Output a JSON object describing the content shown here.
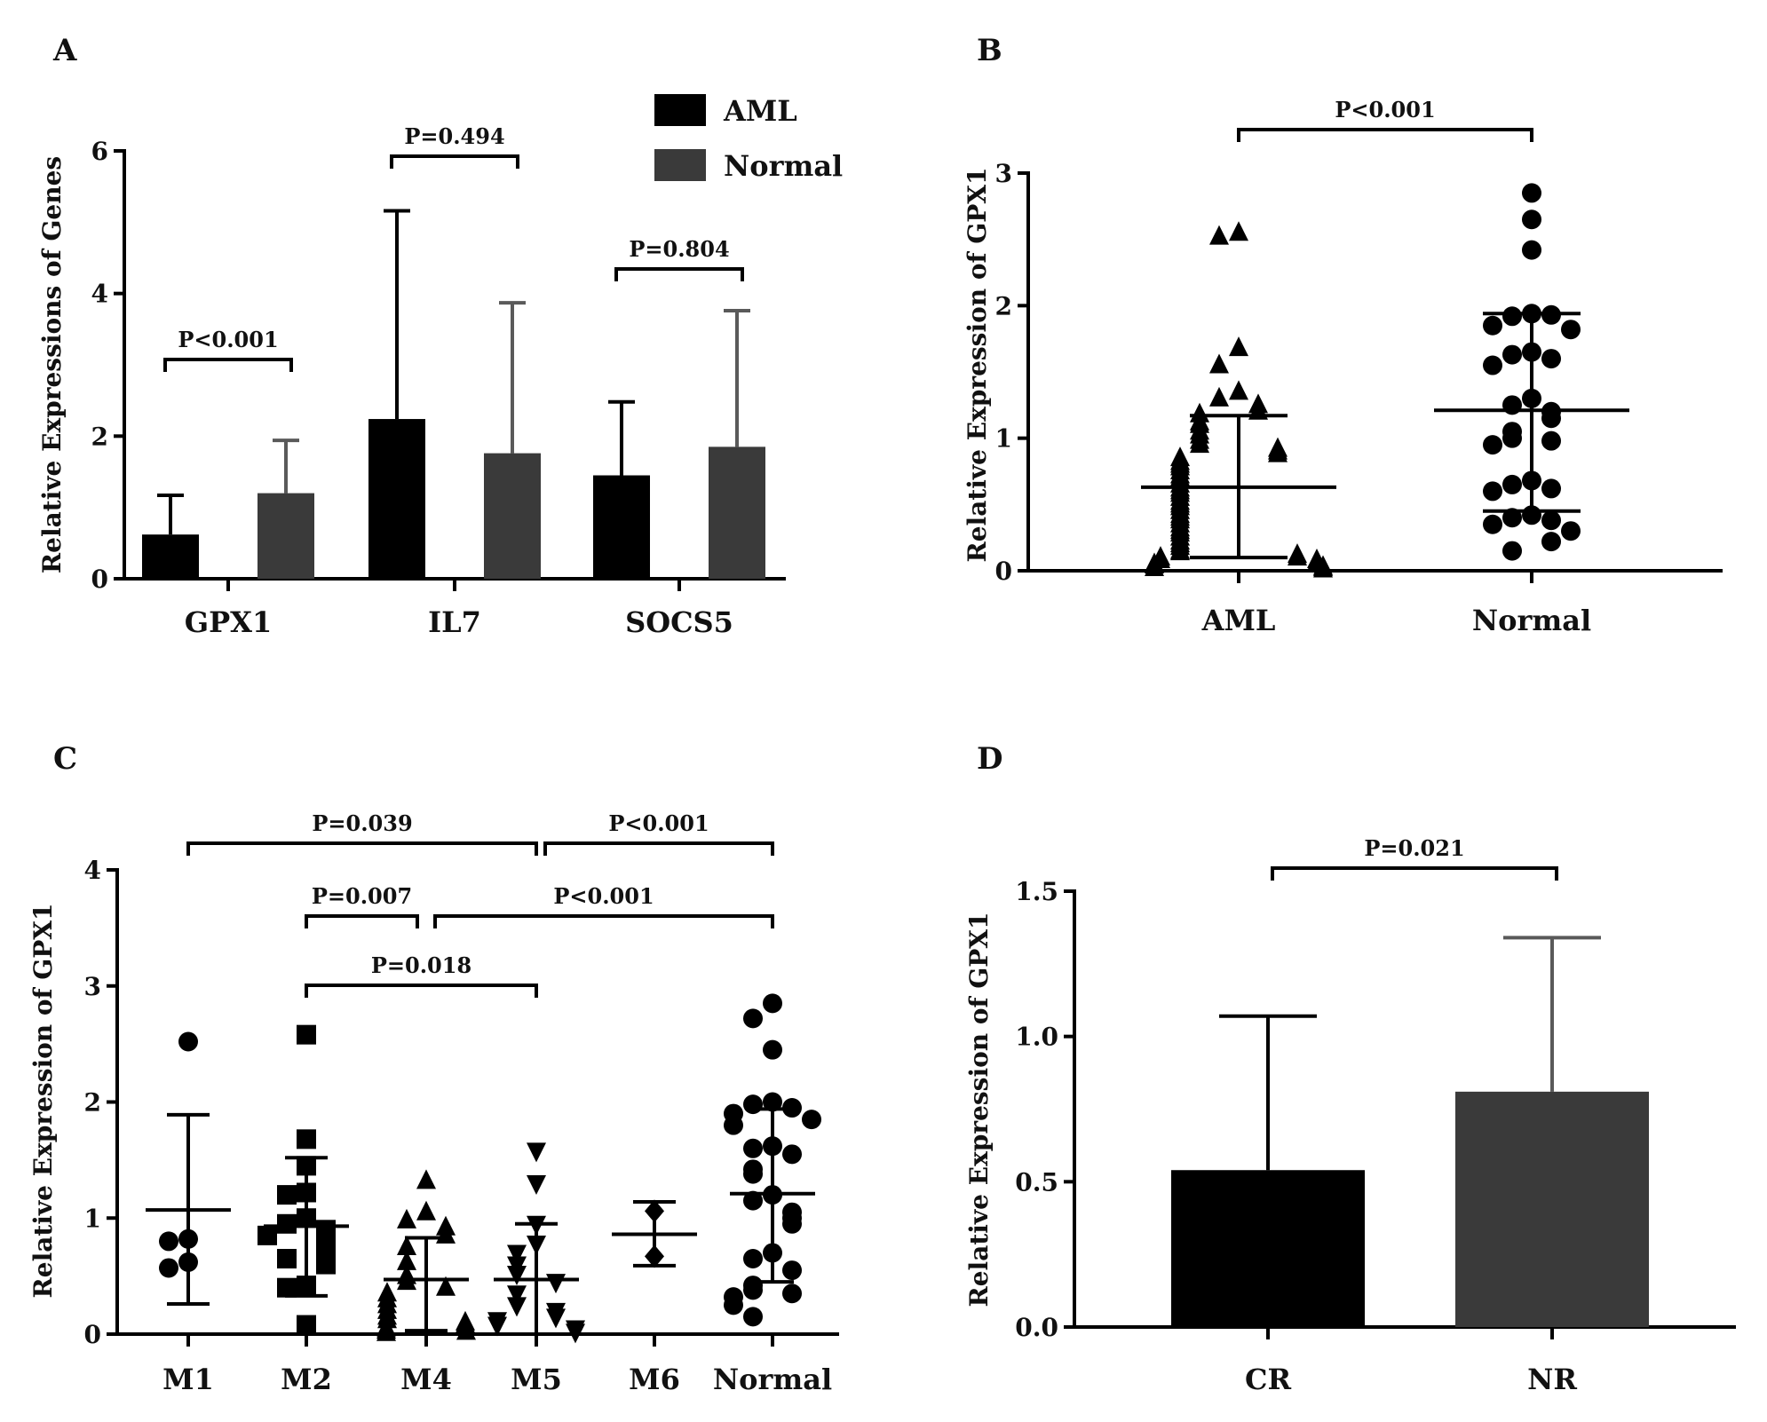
{
  "chart_data": [
    {
      "panel": "A",
      "type": "bar",
      "ylabel": "Relative Expressions of Genes",
      "xlabel": "",
      "ylim": [
        0,
        6
      ],
      "yticks": [
        0,
        2,
        4,
        6
      ],
      "categories": [
        "GPX1",
        "IL7",
        "SOCS5"
      ],
      "legend_position": "top-right",
      "series": [
        {
          "name": "AML",
          "color": "#000000",
          "values": [
            0.62,
            2.24,
            1.45
          ],
          "error_upper": [
            1.17,
            5.16,
            2.48
          ]
        },
        {
          "name": "Normal",
          "color": "#3a3a3a",
          "values": [
            1.2,
            1.76,
            1.85
          ],
          "error_upper": [
            1.94,
            3.87,
            3.76
          ]
        }
      ],
      "significance": [
        {
          "label": "P<0.001",
          "between": [
            "GPX1 AML",
            "GPX1 Normal"
          ]
        },
        {
          "label": "P=0.494",
          "between": [
            "IL7 AML",
            "IL7 Normal"
          ]
        },
        {
          "label": "P=0.804",
          "between": [
            "SOCS5 AML",
            "SOCS5 Normal"
          ]
        }
      ]
    },
    {
      "panel": "B",
      "type": "scatter",
      "ylabel": "Relative Expression of GPX1",
      "xlabel": "",
      "ylim": [
        0,
        3
      ],
      "yticks": [
        0,
        1,
        2,
        3
      ],
      "categories": [
        "AML",
        "Normal"
      ],
      "groups": [
        {
          "name": "AML",
          "marker": "triangle",
          "mean": 0.63,
          "sd_low": 0.1,
          "sd_high": 1.17,
          "values": [
            2.55,
            2.52,
            1.68,
            1.55,
            1.35,
            1.3,
            1.25,
            1.2,
            1.18,
            1.12,
            1.1,
            1.05,
            1.02,
            0.98,
            0.95,
            0.92,
            0.9,
            0.88,
            0.85,
            0.82,
            0.8,
            0.78,
            0.75,
            0.72,
            0.7,
            0.68,
            0.65,
            0.62,
            0.6,
            0.58,
            0.55,
            0.52,
            0.5,
            0.48,
            0.45,
            0.42,
            0.4,
            0.38,
            0.35,
            0.32,
            0.3,
            0.28,
            0.25,
            0.22,
            0.2,
            0.18,
            0.15,
            0.14,
            0.12,
            0.1,
            0.1,
            0.08,
            0.08,
            0.06,
            0.05,
            0.04,
            0.03,
            0.02,
            0.02,
            0.01
          ]
        },
        {
          "name": "Normal",
          "marker": "circle",
          "mean": 1.21,
          "sd_low": 0.45,
          "sd_high": 1.94,
          "values": [
            2.85,
            2.65,
            2.42,
            1.94,
            1.92,
            1.93,
            1.85,
            1.82,
            1.65,
            1.63,
            1.6,
            1.55,
            1.3,
            1.25,
            1.2,
            1.15,
            1.05,
            1.0,
            0.98,
            0.95,
            0.68,
            0.65,
            0.62,
            0.6,
            0.42,
            0.4,
            0.38,
            0.35,
            0.3,
            0.22,
            0.15
          ]
        }
      ],
      "significance": [
        {
          "label": "P<0.001",
          "between": [
            "AML",
            "Normal"
          ]
        }
      ]
    },
    {
      "panel": "C",
      "type": "scatter",
      "ylabel": "Relative Expression of GPX1",
      "xlabel": "",
      "ylim": [
        0,
        4
      ],
      "yticks": [
        0,
        1,
        2,
        3,
        4
      ],
      "categories": [
        "M1",
        "M2",
        "M4",
        "M5",
        "M6",
        "Normal"
      ],
      "groups": [
        {
          "name": "M1",
          "marker": "circle",
          "mean": 1.07,
          "sd_low": 0.26,
          "sd_high": 1.89,
          "values": [
            2.52,
            0.82,
            0.8,
            0.62,
            0.57
          ]
        },
        {
          "name": "M2",
          "marker": "square",
          "mean": 0.93,
          "sd_low": 0.33,
          "sd_high": 1.52,
          "values": [
            2.58,
            1.68,
            1.45,
            1.22,
            1.2,
            1.0,
            0.95,
            0.9,
            0.85,
            0.75,
            0.65,
            0.6,
            0.42,
            0.4,
            0.08
          ]
        },
        {
          "name": "M4",
          "marker": "triangle",
          "mean": 0.47,
          "sd_low": 0.03,
          "sd_high": 0.83,
          "values": [
            1.32,
            1.05,
            0.98,
            0.92,
            0.85,
            0.75,
            0.62,
            0.5,
            0.45,
            0.4,
            0.35,
            0.3,
            0.25,
            0.2,
            0.15,
            0.12,
            0.1,
            0.08,
            0.05,
            0.03,
            0.02,
            0.01
          ]
        },
        {
          "name": "M5",
          "marker": "triangle-down",
          "mean": 0.47,
          "sd_low": 0.0,
          "sd_high": 0.95,
          "values": [
            1.58,
            1.3,
            0.95,
            0.78,
            0.7,
            0.6,
            0.52,
            0.45,
            0.35,
            0.25,
            0.2,
            0.15,
            0.12,
            0.08,
            0.05,
            0.02
          ]
        },
        {
          "name": "M6",
          "marker": "diamond",
          "mean": 0.86,
          "sd_low": 0.59,
          "sd_high": 1.14,
          "values": [
            1.06,
            0.67
          ]
        },
        {
          "name": "Normal",
          "marker": "circle",
          "mean": 1.21,
          "sd_low": 0.45,
          "sd_high": 1.94,
          "values": [
            2.85,
            2.72,
            2.45,
            2.0,
            1.98,
            1.95,
            1.9,
            1.85,
            1.8,
            1.62,
            1.6,
            1.55,
            1.42,
            1.38,
            1.2,
            1.15,
            1.05,
            1.0,
            0.95,
            0.7,
            0.65,
            0.55,
            0.42,
            0.38,
            0.35,
            0.32,
            0.25,
            0.15
          ]
        }
      ],
      "significance": [
        {
          "label": "P=0.039",
          "between": [
            "M1",
            "M5"
          ]
        },
        {
          "label": "P<0.001",
          "between": [
            "M5",
            "Normal"
          ]
        },
        {
          "label": "P=0.007",
          "between": [
            "M2",
            "M4"
          ]
        },
        {
          "label": "P<0.001",
          "between": [
            "M4",
            "Normal"
          ]
        },
        {
          "label": "P=0.018",
          "between": [
            "M2",
            "M5"
          ]
        }
      ]
    },
    {
      "panel": "D",
      "type": "bar",
      "ylabel": "Relative Expression of GPX1",
      "xlabel": "",
      "ylim": [
        0,
        1.5
      ],
      "yticks": [
        "0.0",
        "0.5",
        "1.0",
        "1.5"
      ],
      "categories": [
        "CR",
        "NR"
      ],
      "series": [
        {
          "name": "",
          "colors": [
            "#000000",
            "#3a3a3a"
          ],
          "values": [
            0.54,
            0.81
          ],
          "error_upper": [
            1.07,
            1.34
          ]
        }
      ],
      "significance": [
        {
          "label": "P=0.021",
          "between": [
            "CR",
            "NR"
          ]
        }
      ]
    }
  ]
}
